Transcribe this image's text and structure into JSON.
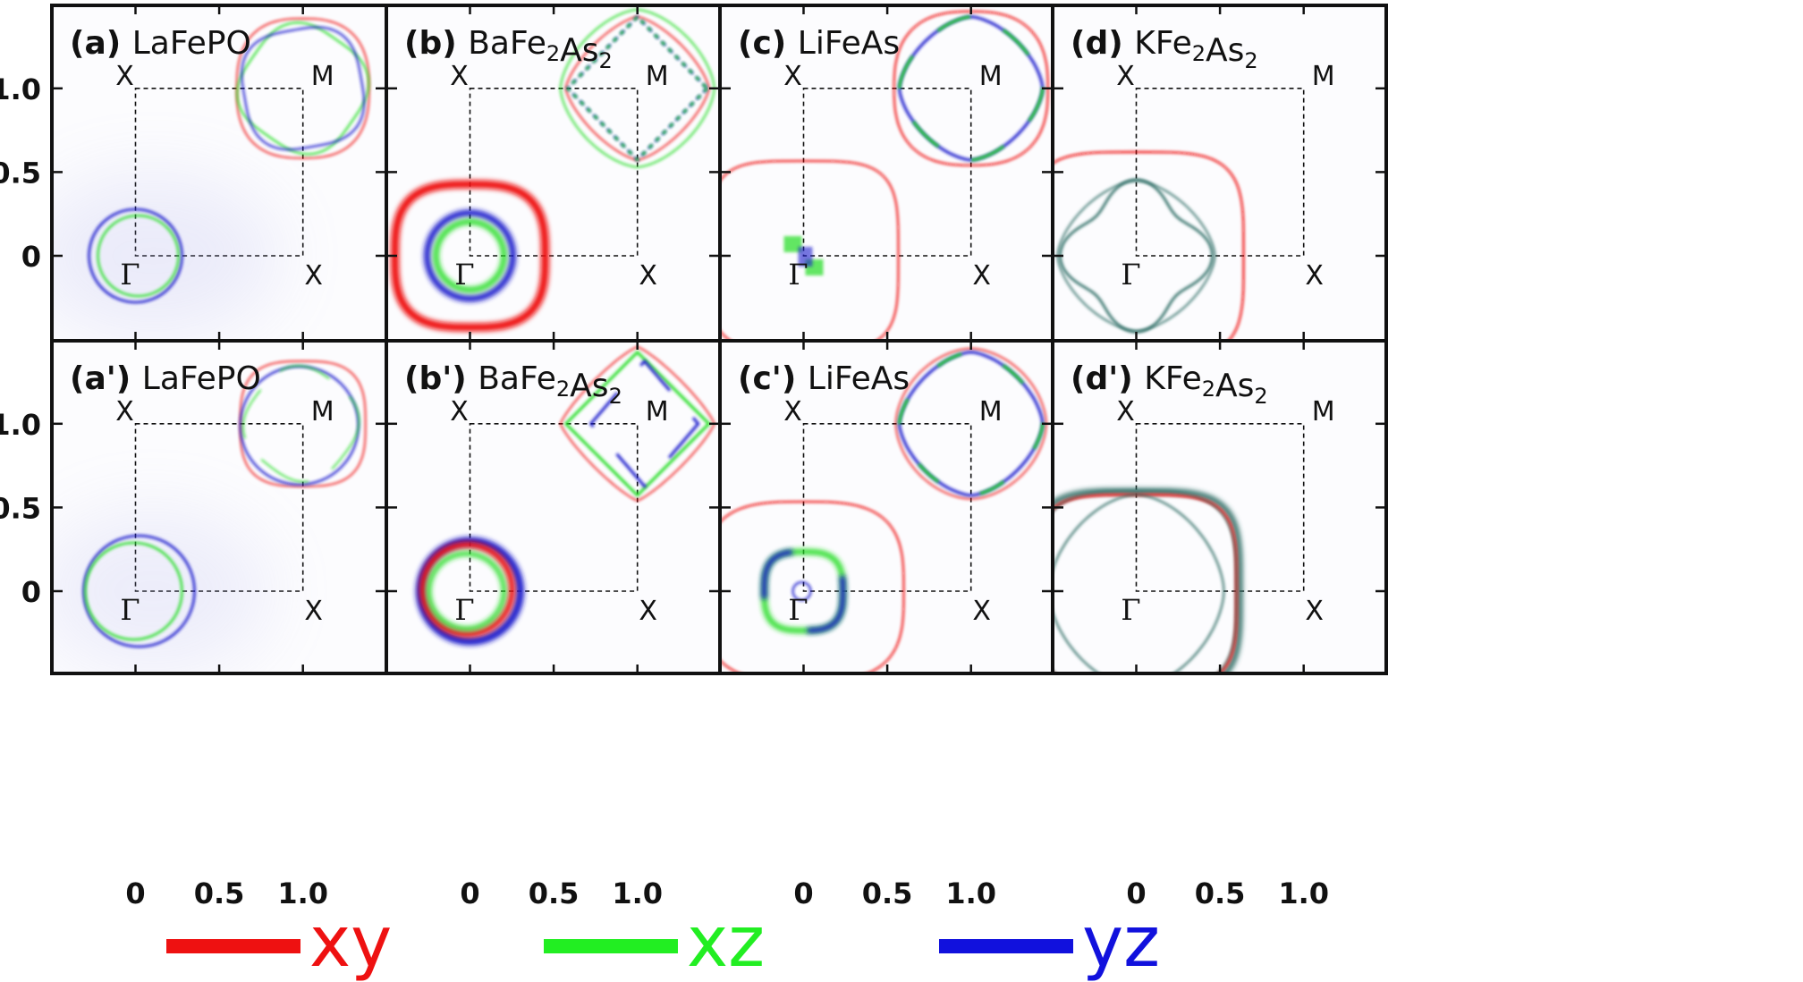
{
  "figure": {
    "panels": [
      {
        "id": "a",
        "tag": "(a)",
        "tag_style": "bold",
        "material": "LaFePO",
        "sub": []
      },
      {
        "id": "b",
        "tag": "(b)",
        "tag_style": "bold",
        "material": "BaFe2As2",
        "sub": [
          "Ba",
          "Fe",
          "2",
          "As",
          "2"
        ]
      },
      {
        "id": "c",
        "tag": "(c)",
        "tag_style": "bold",
        "material": "LiFeAs",
        "sub": []
      },
      {
        "id": "d",
        "tag": "(d)",
        "tag_style": "bold",
        "material": "KFe2As2",
        "sub": [
          "K",
          "Fe",
          "2",
          "As",
          "2"
        ]
      },
      {
        "id": "a2",
        "tag": "(a')",
        "tag_style": "plain",
        "material": "LaFePO",
        "sub": []
      },
      {
        "id": "b2",
        "tag": "(b')",
        "tag_style": "plain",
        "material": "BaFe2As2",
        "sub": [
          "Ba",
          "Fe",
          "2",
          "As",
          "2"
        ]
      },
      {
        "id": "c2",
        "tag": "(c')",
        "tag_style": "plain",
        "material": "LiFeAs",
        "sub": []
      },
      {
        "id": "d2",
        "tag": "(d')",
        "tag_style": "plain",
        "material": "KFe2As2",
        "sub": [
          "K",
          "Fe",
          "2",
          "As",
          "2"
        ]
      }
    ],
    "point_labels": {
      "gamma": "Γ",
      "x": "X",
      "m": "M"
    },
    "y_ticks": [
      "1.0",
      "0.5",
      "0"
    ],
    "x_ticks": [
      "0",
      "0.5",
      "1.0"
    ],
    "legend": [
      {
        "name": "xy",
        "color": "#ee1111"
      },
      {
        "name": "xz",
        "color": "#22ee22"
      },
      {
        "name": "yz",
        "color": "#1111dd"
      }
    ],
    "colors": {
      "xy": "#ee1111",
      "xz": "#22dd22",
      "yz": "#1a1acc",
      "mixed": "#2a6a62"
    }
  }
}
